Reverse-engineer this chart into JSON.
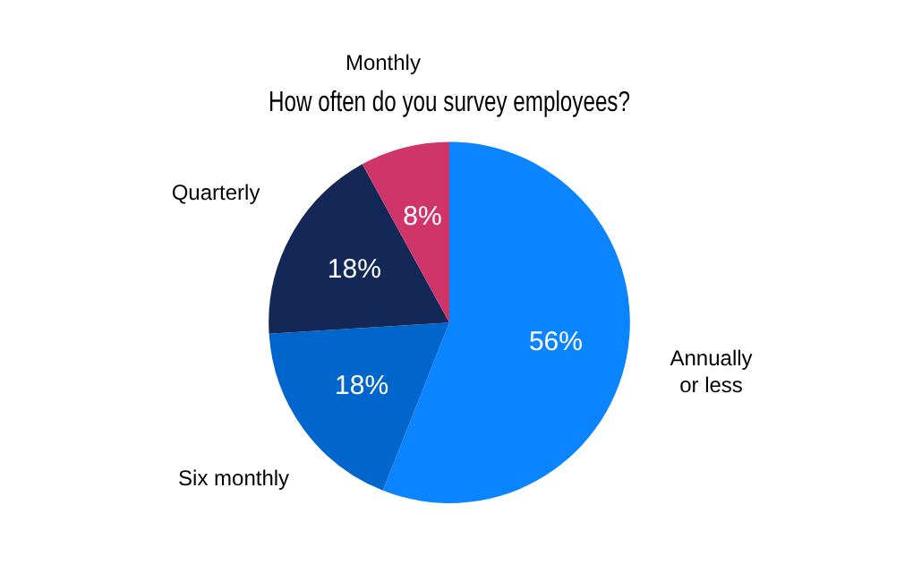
{
  "chart_data": {
    "type": "pie",
    "title": "How often do you survey employees?",
    "categories": [
      "Annually\nor less",
      "Six monthly",
      "Quarterly",
      "Monthly"
    ],
    "values": [
      56,
      18,
      18,
      8
    ],
    "colors": [
      "#0a84ff",
      "#0066cc",
      "#142858",
      "#d0356a"
    ],
    "value_labels": [
      "56%",
      "18%",
      "18%",
      "8%"
    ],
    "legend": false
  }
}
